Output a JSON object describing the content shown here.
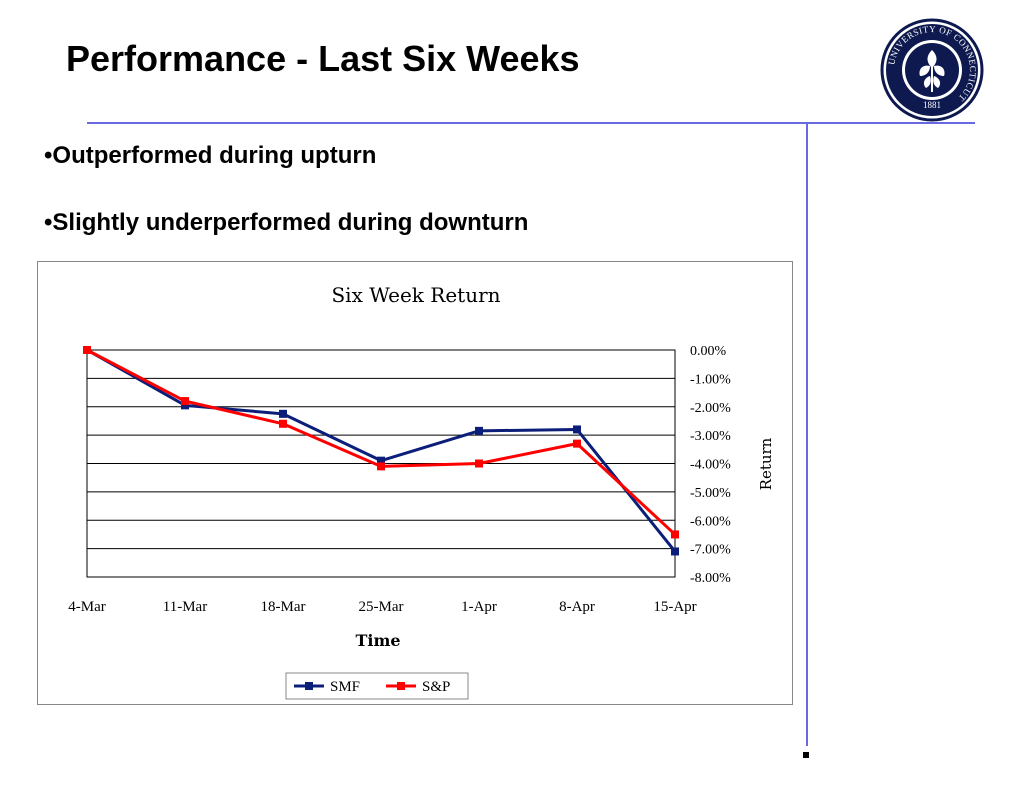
{
  "slide": {
    "title": "Performance - Last Six Weeks",
    "bullets": [
      "•Outperformed during upturn",
      "•Slightly underperformed during downturn"
    ]
  },
  "logo": {
    "ring_text": "UNIVERSITY OF CONNECTICUT",
    "year": "1881",
    "color": "#0e1a4f"
  },
  "colors": {
    "accent_rule": "#6a6ae0",
    "smf": "#0b1e7a",
    "sp": "#ff0000"
  },
  "chart_data": {
    "type": "line",
    "title": "Six Week Return",
    "xlabel": "Time",
    "ylabel": "Return",
    "categories": [
      "4-Mar",
      "11-Mar",
      "18-Mar",
      "25-Mar",
      "1-Apr",
      "8-Apr",
      "15-Apr"
    ],
    "yticks": [
      "0.00%",
      "-1.00%",
      "-2.00%",
      "-3.00%",
      "-4.00%",
      "-5.00%",
      "-6.00%",
      "-7.00%",
      "-8.00%"
    ],
    "ylim": [
      -8,
      0
    ],
    "y_axis_side": "right",
    "grid": true,
    "legend_position": "bottom",
    "series": [
      {
        "name": "SMF",
        "values": [
          0.0,
          -1.95,
          -2.25,
          -3.9,
          -2.85,
          -2.8,
          -7.1
        ],
        "color": "#0b1e7a",
        "marker": "square"
      },
      {
        "name": "S&P",
        "values": [
          0.0,
          -1.8,
          -2.6,
          -4.1,
          -4.0,
          -3.3,
          -6.5
        ],
        "color": "#ff0000",
        "marker": "square"
      }
    ]
  }
}
